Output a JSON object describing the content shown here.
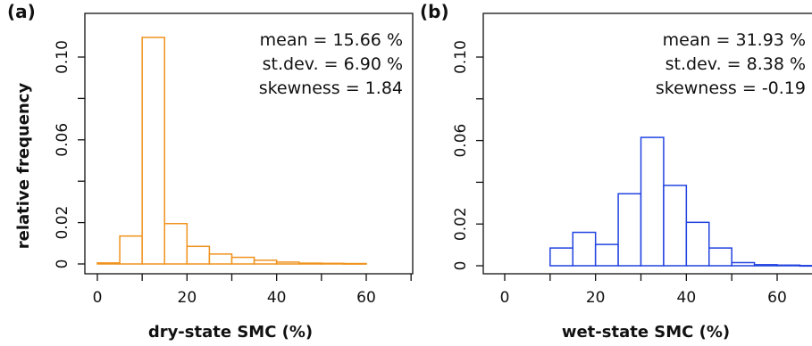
{
  "figure": {
    "panels": [
      "(a)",
      "(b)"
    ]
  },
  "chart_data": [
    {
      "type": "bar",
      "panel": "(a)",
      "bar_color": "#f0921e",
      "xlabel": "dry-state SMC (%)",
      "ylabel": "relative frequency",
      "xlim": [
        -5,
        70
      ],
      "ylim": [
        0,
        0.112
      ],
      "x_ticks": [
        "0",
        "20",
        "40",
        "60"
      ],
      "y_ticks": [
        "0",
        "0.02",
        "0.06",
        "0.10"
      ],
      "y_tick_values": [
        0,
        0.02,
        0.06,
        0.1
      ],
      "x_tick_values": [
        0,
        20,
        40,
        60
      ],
      "bin_edges": [
        0,
        5,
        10,
        15,
        20,
        25,
        30,
        35,
        40,
        45,
        50,
        55,
        60
      ],
      "values": [
        0.0005,
        0.0135,
        0.1095,
        0.0195,
        0.0085,
        0.0048,
        0.0032,
        0.0018,
        0.0009,
        0.0004,
        0.0003,
        0.0002
      ],
      "stats": [
        "mean = 15.66 %",
        "st.dev. = 6.90 %",
        "skewness = 1.84"
      ]
    },
    {
      "type": "bar",
      "panel": "(b)",
      "bar_color": "#2143e0",
      "xlabel": "wet-state SMC (%)",
      "ylabel": "",
      "xlim": [
        -5,
        70
      ],
      "ylim": [
        0,
        0.112
      ],
      "x_ticks": [
        "0",
        "20",
        "40",
        "60"
      ],
      "y_ticks": [
        "0",
        "0.02",
        "0.06",
        "0.10"
      ],
      "y_tick_values": [
        0,
        0.02,
        0.06,
        0.1
      ],
      "x_tick_values": [
        0,
        20,
        40,
        60
      ],
      "bin_edges": [
        10,
        15,
        20,
        25,
        30,
        35,
        40,
        45,
        50,
        55,
        60,
        65,
        70
      ],
      "values": [
        0.0085,
        0.016,
        0.0102,
        0.0345,
        0.0615,
        0.0385,
        0.0208,
        0.0085,
        0.0015,
        0.0005,
        0.0003,
        0.0001
      ],
      "stats": [
        "mean = 31.93 %",
        "st.dev. = 8.38 %",
        "skewness = -0.19"
      ]
    }
  ]
}
